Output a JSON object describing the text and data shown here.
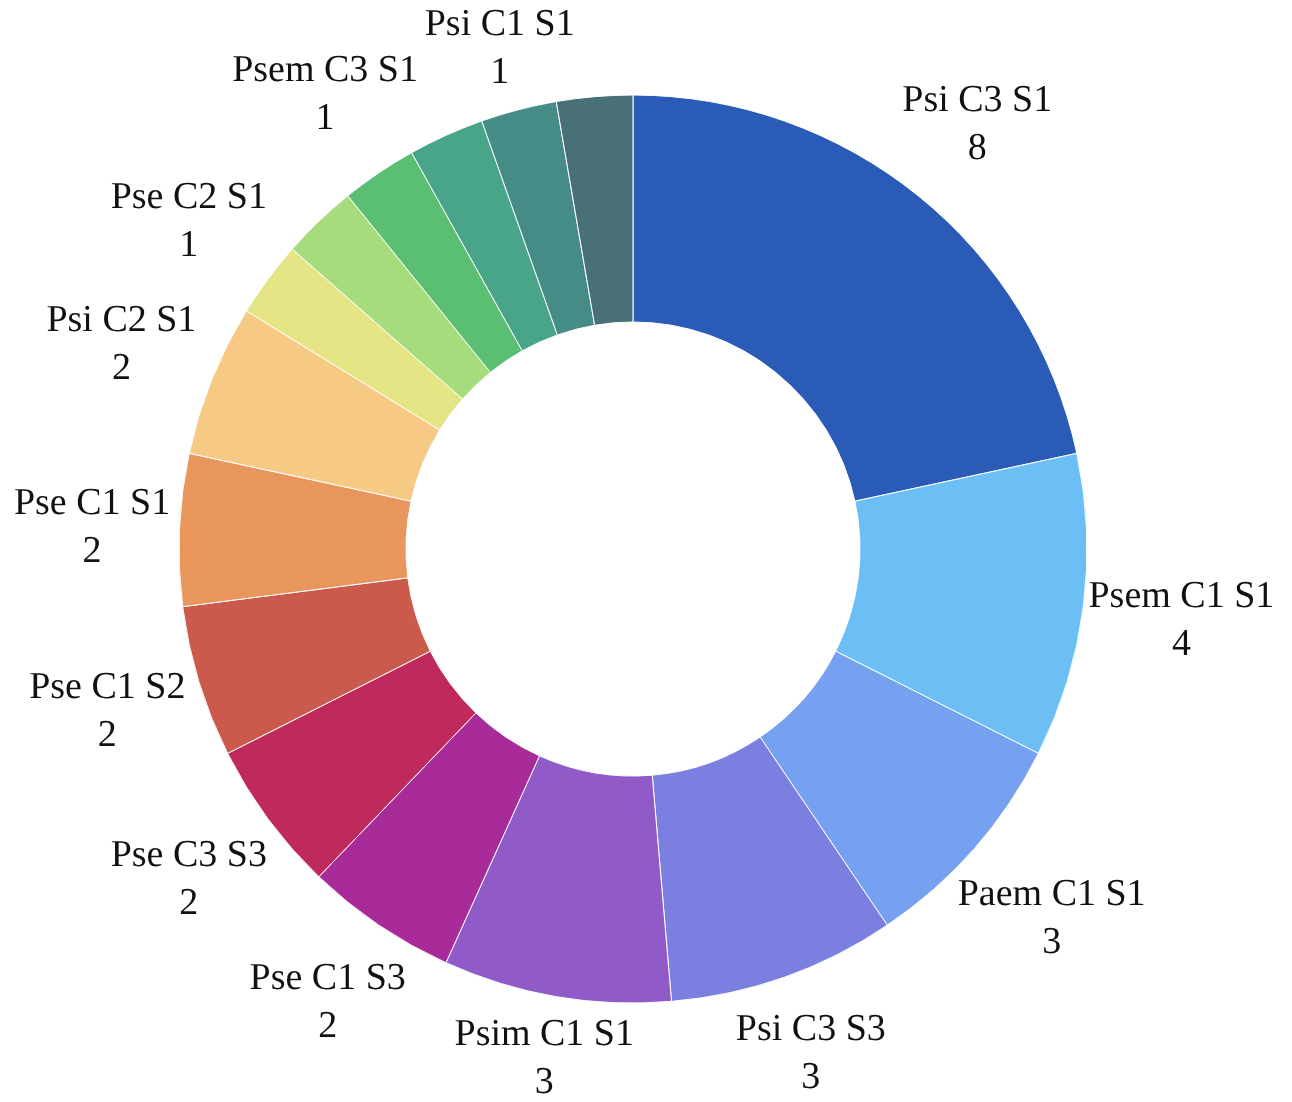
{
  "chart_data": {
    "type": "donut",
    "categories": [
      "Psi C3 S1",
      "Psem C1 S1",
      "Paem C1 S1",
      "Psi C3 S3",
      "Psim C1 S1",
      "Pse C1 S3",
      "Pse C3 S3",
      "Pse C1 S2",
      "Pse C1 S1",
      "Psi C2 S1",
      "Pse C2 S1",
      null,
      "Psem C3 S1",
      null,
      "Psi C1 S1",
      null
    ],
    "values": [
      8,
      4,
      3,
      3,
      3,
      2,
      2,
      2,
      2,
      2,
      1,
      1,
      1,
      1,
      1,
      1
    ],
    "value_labels": [
      "8",
      "4",
      "3",
      "3",
      "3",
      "2",
      "2",
      "2",
      "2",
      "2",
      "1",
      null,
      "1",
      null,
      "1",
      null
    ],
    "colors": [
      "#2a5bb7",
      "#6bbff5",
      "#75a1f0",
      "#7b7fdf",
      "#905ac8",
      "#a92a99",
      "#c0295c",
      "#cc5a4c",
      "#e8965c",
      "#f6ca84",
      "#e6e585",
      "#a6dc7c",
      "#5abf73",
      "#48a58a",
      "#448c85",
      "#4a7077"
    ]
  }
}
